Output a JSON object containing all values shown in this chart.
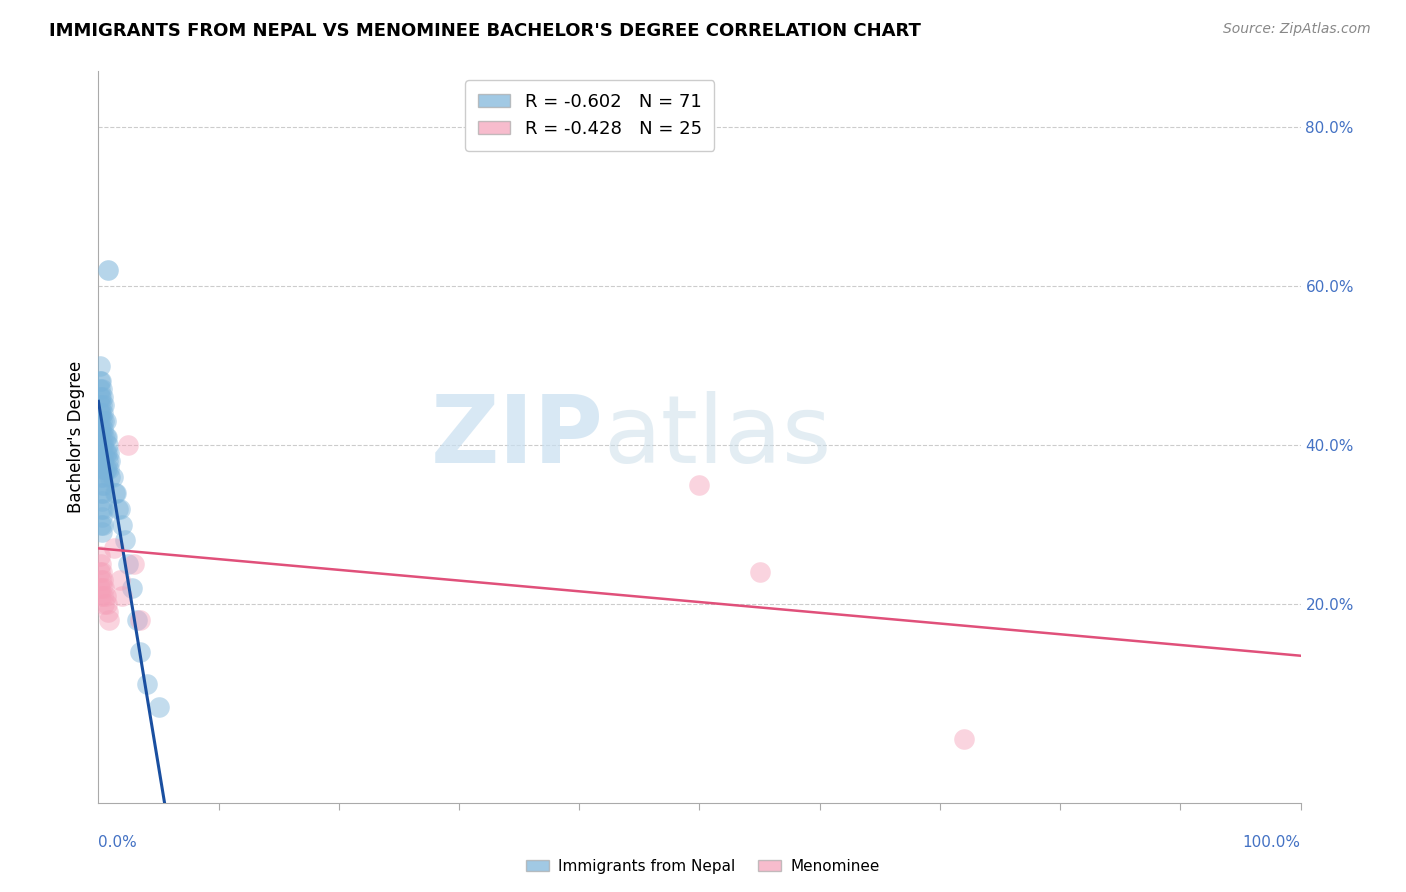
{
  "title": "IMMIGRANTS FROM NEPAL VS MENOMINEE BACHELOR'S DEGREE CORRELATION CHART",
  "source": "Source: ZipAtlas.com",
  "ylabel": "Bachelor's Degree",
  "blue_color": "#7ab3d9",
  "pink_color": "#f4a0b8",
  "blue_line_color": "#1a4fa0",
  "pink_line_color": "#e0507a",
  "blue_dots_x": [
    0.001,
    0.001,
    0.001,
    0.001,
    0.001,
    0.001,
    0.001,
    0.001,
    0.001,
    0.001,
    0.002,
    0.002,
    0.002,
    0.002,
    0.002,
    0.002,
    0.002,
    0.002,
    0.002,
    0.002,
    0.003,
    0.003,
    0.003,
    0.003,
    0.003,
    0.003,
    0.003,
    0.003,
    0.003,
    0.003,
    0.004,
    0.004,
    0.004,
    0.004,
    0.004,
    0.004,
    0.004,
    0.004,
    0.004,
    0.005,
    0.005,
    0.005,
    0.005,
    0.005,
    0.005,
    0.006,
    0.006,
    0.006,
    0.006,
    0.007,
    0.007,
    0.007,
    0.008,
    0.008,
    0.009,
    0.009,
    0.01,
    0.01,
    0.012,
    0.014,
    0.015,
    0.016,
    0.018,
    0.02,
    0.022,
    0.025,
    0.028,
    0.032,
    0.035,
    0.04,
    0.05
  ],
  "blue_dots_y": [
    0.5,
    0.48,
    0.47,
    0.46,
    0.45,
    0.44,
    0.43,
    0.42,
    0.41,
    0.4,
    0.48,
    0.46,
    0.44,
    0.42,
    0.4,
    0.38,
    0.36,
    0.34,
    0.32,
    0.3,
    0.47,
    0.45,
    0.43,
    0.41,
    0.39,
    0.37,
    0.35,
    0.33,
    0.31,
    0.29,
    0.46,
    0.44,
    0.42,
    0.4,
    0.38,
    0.36,
    0.34,
    0.32,
    0.3,
    0.45,
    0.43,
    0.41,
    0.39,
    0.37,
    0.35,
    0.43,
    0.41,
    0.39,
    0.37,
    0.41,
    0.39,
    0.37,
    0.4,
    0.38,
    0.39,
    0.37,
    0.38,
    0.36,
    0.36,
    0.34,
    0.34,
    0.32,
    0.32,
    0.3,
    0.28,
    0.25,
    0.22,
    0.18,
    0.14,
    0.1,
    0.07
  ],
  "blue_outlier_x": [
    0.008
  ],
  "blue_outlier_y": [
    0.62
  ],
  "pink_dots_x": [
    0.001,
    0.001,
    0.001,
    0.002,
    0.002,
    0.002,
    0.003,
    0.003,
    0.004,
    0.004,
    0.005,
    0.005,
    0.006,
    0.007,
    0.008,
    0.009,
    0.013,
    0.018,
    0.02,
    0.025,
    0.03,
    0.035,
    0.5,
    0.55,
    0.72
  ],
  "pink_dots_y": [
    0.26,
    0.24,
    0.22,
    0.25,
    0.23,
    0.21,
    0.24,
    0.22,
    0.23,
    0.21,
    0.22,
    0.2,
    0.21,
    0.2,
    0.19,
    0.18,
    0.27,
    0.23,
    0.21,
    0.4,
    0.25,
    0.18,
    0.35,
    0.24,
    0.03
  ],
  "blue_line_x": [
    0.0,
    0.055
  ],
  "blue_line_y": [
    0.455,
    -0.05
  ],
  "pink_line_x": [
    0.0,
    1.0
  ],
  "pink_line_y": [
    0.27,
    0.135
  ],
  "xlim": [
    0.0,
    1.0
  ],
  "ylim": [
    -0.05,
    0.87
  ],
  "xgrid": [
    0.1,
    0.2,
    0.3,
    0.4,
    0.5,
    0.6,
    0.7,
    0.8,
    0.9,
    1.0
  ],
  "ygrid": [
    0.2,
    0.4,
    0.6,
    0.8
  ],
  "right_yticks": [
    0.2,
    0.4,
    0.6,
    0.8
  ],
  "right_yticklabels": [
    "20.0%",
    "40.0%",
    "60.0%",
    "80.0%"
  ],
  "legend1_label": "R = -0.602   N = 71",
  "legend2_label": "R = -0.428   N = 25"
}
